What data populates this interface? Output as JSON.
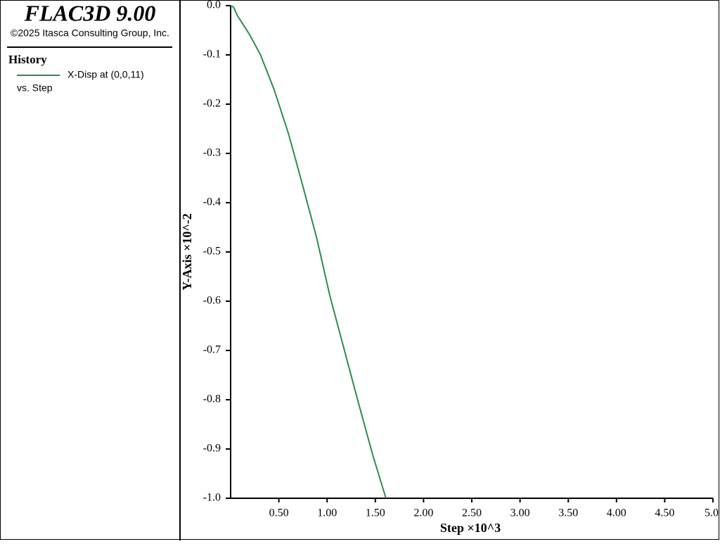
{
  "header": {
    "title": "FLAC3D 9.00",
    "copyright": "©2025 Itasca Consulting Group, Inc."
  },
  "legend": {
    "heading": "History",
    "entry": "X-Disp at (0,0,11)",
    "against": "vs. Step"
  },
  "chart_data": {
    "type": "line",
    "xlabel": "Step ×10^3",
    "ylabel": "Y-Axis ×10^-2",
    "xlim": [
      0,
      5.0
    ],
    "xticks": [
      {
        "value": 0.5,
        "label": "0.50"
      },
      {
        "value": 1.0,
        "label": "1.00"
      },
      {
        "value": 1.5,
        "label": "1.50"
      },
      {
        "value": 2.0,
        "label": "2.00"
      },
      {
        "value": 2.5,
        "label": "2.50"
      },
      {
        "value": 3.0,
        "label": "3.00"
      },
      {
        "value": 3.5,
        "label": "3.50"
      },
      {
        "value": 4.0,
        "label": "4.00"
      },
      {
        "value": 4.5,
        "label": "4.50"
      },
      {
        "value": 5.0,
        "label": "5.0"
      }
    ],
    "ylim": [
      -1.0,
      0.0
    ],
    "yticks": [
      {
        "value": 0,
        "label": "0.0"
      },
      -0.1,
      -0.2,
      -0.3,
      -0.4,
      -0.5,
      -0.6,
      -0.7,
      -0.8,
      -0.9,
      {
        "value": -1.0,
        "label": "-1.0"
      }
    ],
    "grid": false,
    "x": [
      0,
      0.03,
      0.07,
      0.2,
      0.31,
      0.45,
      0.6,
      0.74,
      0.89,
      1.03,
      1.18,
      1.33,
      1.47,
      1.61
    ],
    "series": [
      {
        "name": "X-Disp at (0,0,11)",
        "color": "#2e8b4e",
        "values": [
          0,
          -0.003,
          -0.02,
          -0.06,
          -0.1,
          -0.17,
          -0.26,
          -0.36,
          -0.47,
          -0.59,
          -0.7,
          -0.81,
          -0.91,
          -1.0
        ]
      }
    ]
  }
}
